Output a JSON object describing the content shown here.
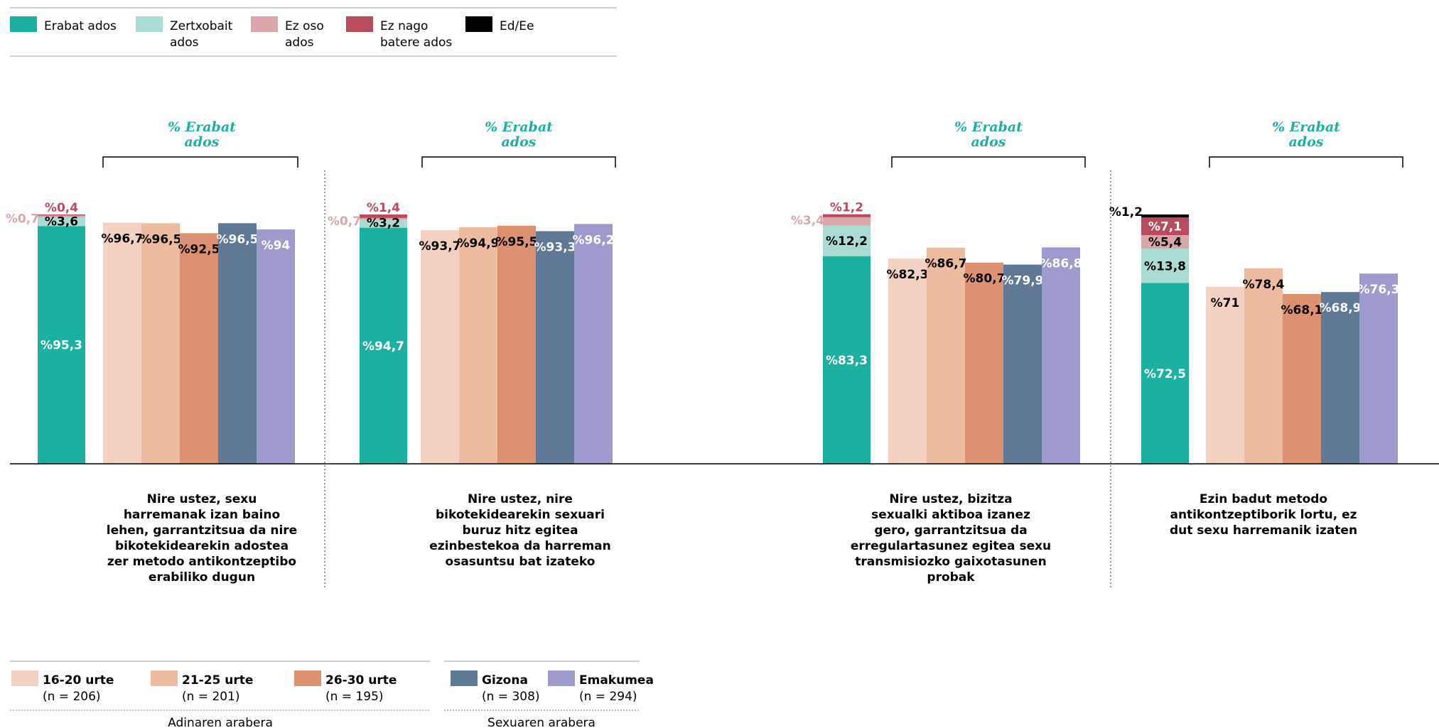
{
  "legend_top": [
    {
      "label": [
        "Erabat ados"
      ],
      "color": "#1bb0a0"
    },
    {
      "label": [
        "Zertxobait",
        "ados"
      ],
      "color": "#abdcd4"
    },
    {
      "label": [
        "Ez oso",
        "ados"
      ],
      "color": "#d9a6aa"
    },
    {
      "label": [
        "Ez nago",
        "batere ados"
      ],
      "color": "#b84b5c"
    },
    {
      "label": [
        "Ed/Ee"
      ],
      "color": "#000000"
    }
  ],
  "group_colors": [
    "#f4d2c3",
    "#ecbba0",
    "#dc9270",
    "#5f7895",
    "#9d9bce"
  ],
  "legend_bottom": {
    "age": {
      "title": "Adinaren arabera",
      "items": [
        {
          "label": "16-20 urte",
          "n": "(n = 206)"
        },
        {
          "label": "21-25 urte",
          "n": "(n = 201)"
        },
        {
          "label": "26-30 urte",
          "n": "(n = 195)"
        }
      ]
    },
    "sex": {
      "title": "Sexuaren arabera",
      "items": [
        {
          "label": "Gizona",
          "n": "(n = 308)"
        },
        {
          "label": "Emakumea",
          "n": "(n = 294)"
        }
      ]
    }
  },
  "chart_data": {
    "type": "bar",
    "ylim": [
      0,
      100
    ],
    "group_header": [
      "% Erabat",
      "ados"
    ],
    "panels": [
      {
        "question": [
          "Nire ustez, sexu",
          "harremanak izan baino",
          "lehen, garrantzitsua da nire",
          "bikotekidearekin adostea",
          "zer metodo antikontzeptibo",
          "erabiliko dugun"
        ],
        "stack": [
          {
            "category": "Erabat ados",
            "value": 95.3,
            "label": "%95,3"
          },
          {
            "category": "Zertxobait ados",
            "value": 3.6,
            "label": "%3,6"
          },
          {
            "category": "Ez oso ados",
            "value": 0.7,
            "label": "%0,7"
          },
          {
            "category": "Ez nago batere ados",
            "value": 0.4,
            "label": "%0,4"
          }
        ],
        "groups": [
          {
            "category": "16-20 urte",
            "value": 96.7,
            "label": "%96,7"
          },
          {
            "category": "21-25 urte",
            "value": 96.5,
            "label": "%96,5"
          },
          {
            "category": "26-30 urte",
            "value": 92.5,
            "label": "%92,5"
          },
          {
            "category": "Gizona",
            "value": 96.5,
            "label": "%96,5"
          },
          {
            "category": "Emakumea",
            "value": 94,
            "label": "%94"
          }
        ]
      },
      {
        "question": [
          "Nire ustez, nire",
          "bikotekidearekin sexuari",
          "buruz hitz egitea",
          "ezinbestekoa da harreman",
          "osasuntsu bat izateko"
        ],
        "stack": [
          {
            "category": "Erabat ados",
            "value": 94.7,
            "label": "%94,7"
          },
          {
            "category": "Zertxobait ados",
            "value": 3.2,
            "label": "%3,2"
          },
          {
            "category": "Ez oso ados",
            "value": 0.7,
            "label": "%0,7"
          },
          {
            "category": "Ez nago batere ados",
            "value": 1.4,
            "label": "%1,4"
          }
        ],
        "groups": [
          {
            "category": "16-20 urte",
            "value": 93.7,
            "label": "%93,7"
          },
          {
            "category": "21-25 urte",
            "value": 94.9,
            "label": "%94,9"
          },
          {
            "category": "26-30 urte",
            "value": 95.5,
            "label": "%95,5"
          },
          {
            "category": "Gizona",
            "value": 93.3,
            "label": "%93,3"
          },
          {
            "category": "Emakumea",
            "value": 96.2,
            "label": "%96,2"
          }
        ]
      },
      {
        "question": [
          "Nire ustez, bizitza",
          "sexualki aktiboa izanez",
          "gero, garrantzitsua da",
          "erregulartasunez egitea sexu",
          "transmisiozko gaixotasunen",
          "probak"
        ],
        "stack": [
          {
            "category": "Erabat ados",
            "value": 83.3,
            "label": "%83,3"
          },
          {
            "category": "Zertxobait ados",
            "value": 12.2,
            "label": "%12,2"
          },
          {
            "category": "Ez oso ados",
            "value": 3.4,
            "label": "%3,4"
          },
          {
            "category": "Ez nago batere ados",
            "value": 1.2,
            "label": "%1,2"
          }
        ],
        "groups": [
          {
            "category": "16-20 urte",
            "value": 82.3,
            "label": "%82,3"
          },
          {
            "category": "21-25 urte",
            "value": 86.7,
            "label": "%86,7"
          },
          {
            "category": "26-30 urte",
            "value": 80.7,
            "label": "%80,7"
          },
          {
            "category": "Gizona",
            "value": 79.9,
            "label": "%79,9"
          },
          {
            "category": "Emakumea",
            "value": 86.8,
            "label": "%86,8"
          }
        ]
      },
      {
        "question": [
          "Ezin badut metodo",
          "antikontzeptiborik lortu, ez",
          "dut sexu harremanik izaten"
        ],
        "stack": [
          {
            "category": "Erabat ados",
            "value": 72.5,
            "label": "%72,5"
          },
          {
            "category": "Zertxobait ados",
            "value": 13.8,
            "label": "%13,8"
          },
          {
            "category": "Ez oso ados",
            "value": 5.4,
            "label": "%5,4"
          },
          {
            "category": "Ez nago batere ados",
            "value": 7.1,
            "label": "%7,1"
          },
          {
            "category": "Ed/Ee",
            "value": 1.2,
            "label": "%1,2"
          }
        ],
        "groups": [
          {
            "category": "16-20 urte",
            "value": 71,
            "label": "%71"
          },
          {
            "category": "21-25 urte",
            "value": 78.4,
            "label": "%78,4"
          },
          {
            "category": "26-30 urte",
            "value": 68.1,
            "label": "%68,1"
          },
          {
            "category": "Gizona",
            "value": 68.9,
            "label": "%68,9"
          },
          {
            "category": "Emakumea",
            "value": 76.3,
            "label": "%76,3"
          }
        ]
      }
    ]
  }
}
